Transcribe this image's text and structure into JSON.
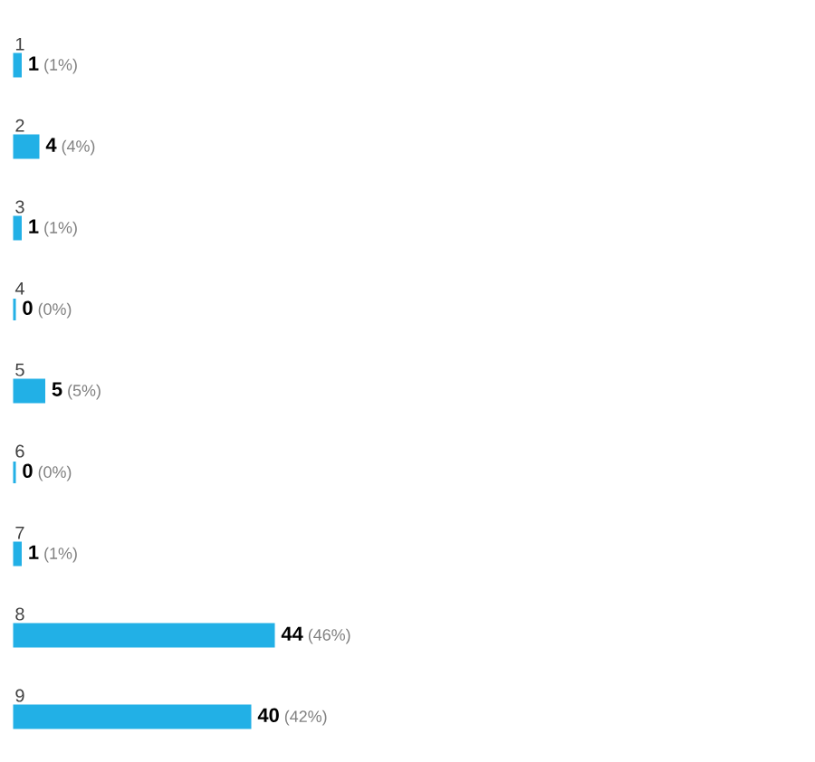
{
  "chart_data": {
    "type": "bar",
    "orientation": "horizontal",
    "categories": [
      "1",
      "2",
      "3",
      "4",
      "5",
      "6",
      "7",
      "8",
      "9"
    ],
    "values": [
      1,
      4,
      1,
      0,
      5,
      0,
      1,
      44,
      40
    ],
    "color": "#22b0e6",
    "value_labels": [
      "**1** (1%)",
      "**4** (4%)",
      "**1** (1%)",
      "**0** (0%)",
      "**5** (5%)",
      "**0** (0%)",
      "**1** (1%)",
      "**44** (46%)",
      "**40** (42%)"
    ]
  }
}
